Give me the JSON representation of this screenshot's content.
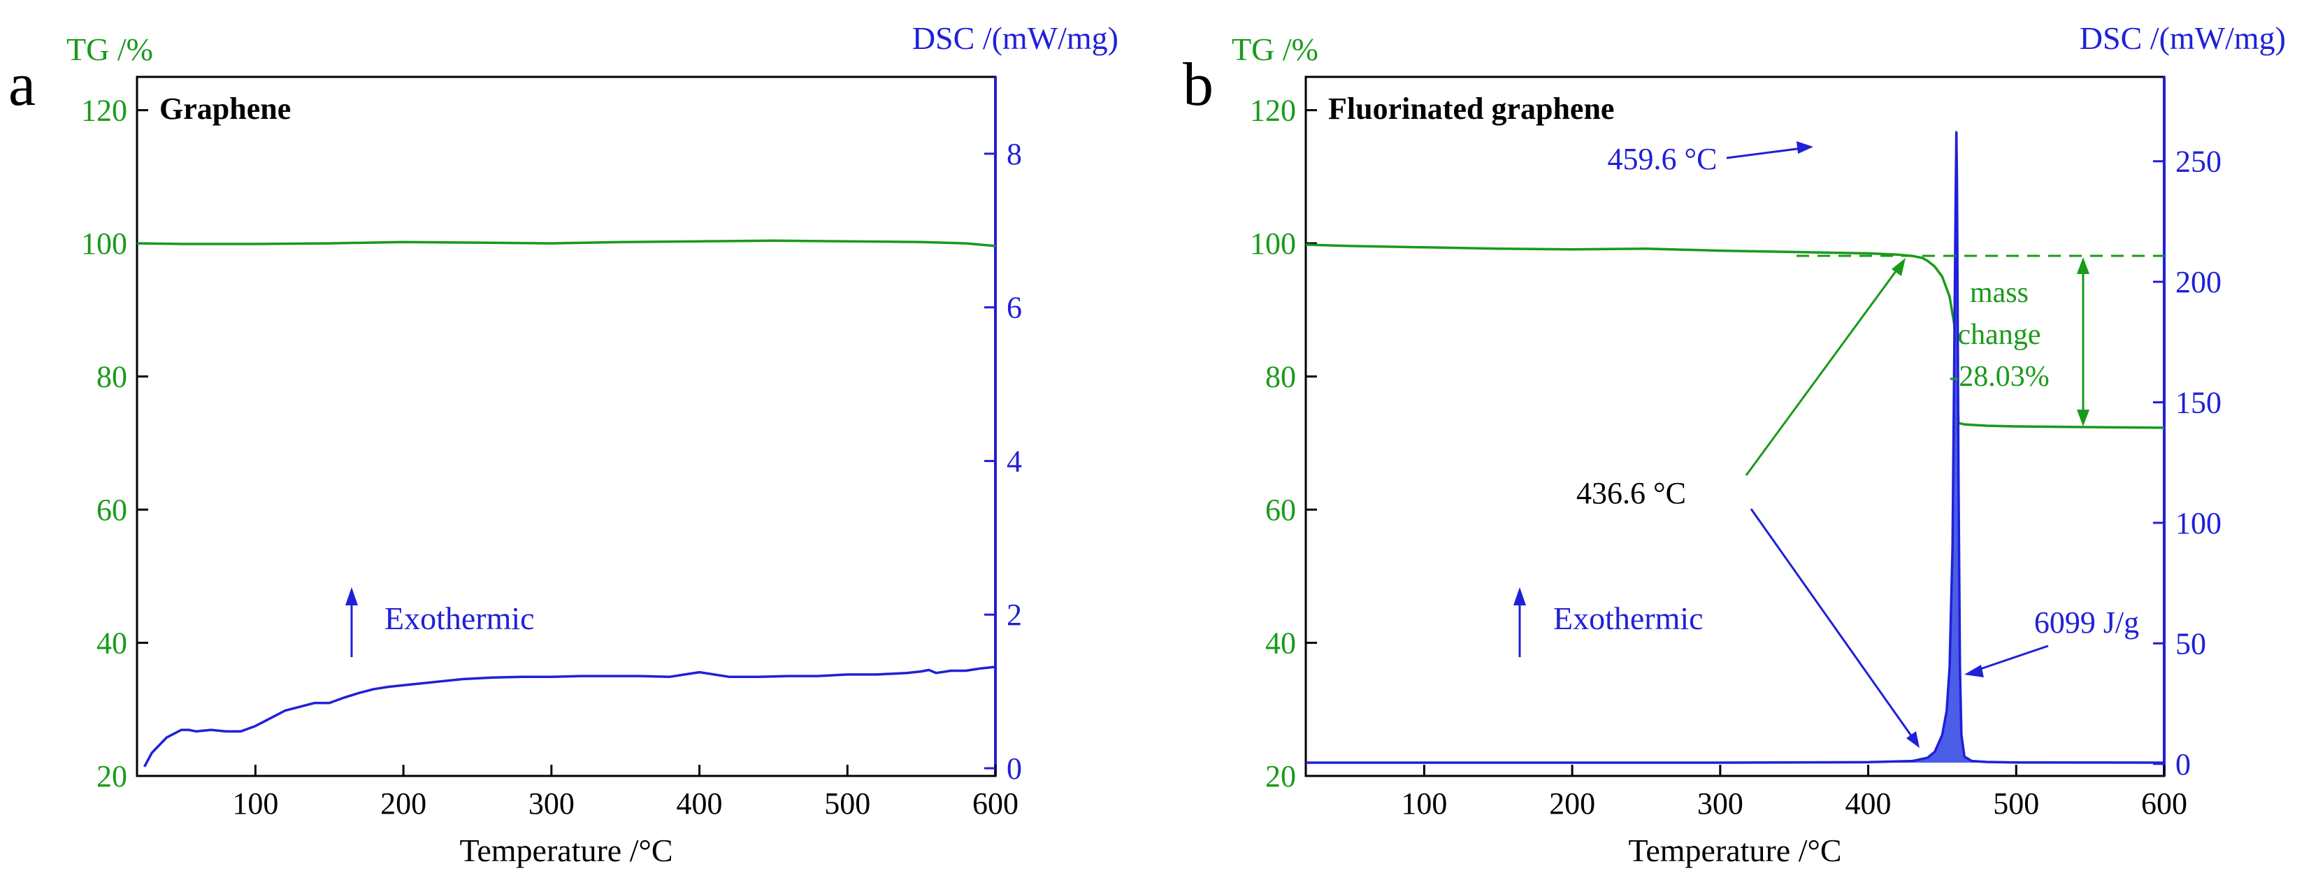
{
  "colors": {
    "tg": "#1a9a1a",
    "dsc": "#2020d8",
    "axis": "#000000",
    "fill": "#4a5ee8"
  },
  "chart_data": [
    {
      "panel_letter": "a",
      "type": "line",
      "title": "Graphene",
      "xlabel": "Temperature /°C",
      "xlim": [
        20,
        600
      ],
      "x_ticks": [
        100,
        200,
        300,
        400,
        500,
        600
      ],
      "y_left": {
        "label": "TG /%",
        "lim": [
          20,
          125
        ],
        "ticks": [
          20,
          40,
          60,
          80,
          100,
          120
        ]
      },
      "y_right": {
        "label": "DSC /(mW/mg)",
        "lim": [
          -0.1,
          9.0
        ],
        "ticks": [
          0,
          2,
          4,
          6,
          8
        ]
      },
      "series": [
        {
          "name": "TG",
          "axis": "left",
          "fill": false,
          "x": [
            20,
            50,
            100,
            150,
            200,
            250,
            300,
            350,
            400,
            450,
            500,
            550,
            580,
            600
          ],
          "y": [
            100.0,
            99.9,
            99.9,
            100.0,
            100.2,
            100.1,
            100.0,
            100.2,
            100.3,
            100.4,
            100.3,
            100.2,
            100.0,
            99.6
          ]
        },
        {
          "name": "DSC",
          "axis": "right",
          "fill": false,
          "x": [
            25,
            30,
            35,
            40,
            45,
            50,
            55,
            60,
            70,
            80,
            90,
            100,
            110,
            120,
            130,
            140,
            150,
            160,
            170,
            180,
            190,
            200,
            220,
            240,
            260,
            280,
            300,
            320,
            340,
            360,
            380,
            390,
            400,
            410,
            420,
            440,
            460,
            480,
            500,
            520,
            540,
            550,
            555,
            560,
            570,
            580,
            590,
            600
          ],
          "y": [
            0.02,
            0.2,
            0.3,
            0.4,
            0.45,
            0.5,
            0.5,
            0.48,
            0.5,
            0.48,
            0.48,
            0.55,
            0.65,
            0.75,
            0.8,
            0.85,
            0.85,
            0.92,
            0.98,
            1.03,
            1.06,
            1.08,
            1.12,
            1.16,
            1.18,
            1.19,
            1.19,
            1.2,
            1.2,
            1.2,
            1.19,
            1.22,
            1.25,
            1.22,
            1.19,
            1.19,
            1.2,
            1.2,
            1.22,
            1.22,
            1.24,
            1.26,
            1.28,
            1.24,
            1.27,
            1.27,
            1.3,
            1.32
          ]
        }
      ],
      "annotations": [
        {
          "text": "Exothermic",
          "kind": "arrow-up-label",
          "x": 162,
          "y_left": 38
        }
      ]
    },
    {
      "panel_letter": "b",
      "type": "line",
      "title": "Fluorinated graphene",
      "xlabel": "Temperature /°C",
      "xlim": [
        20,
        600
      ],
      "x_ticks": [
        100,
        200,
        300,
        400,
        500,
        600
      ],
      "y_left": {
        "label": "TG /%",
        "lim": [
          20,
          125
        ],
        "ticks": [
          20,
          40,
          60,
          80,
          100,
          120
        ]
      },
      "y_right": {
        "label": "DSC /(mW/mg)",
        "lim": [
          -5,
          285
        ],
        "ticks": [
          0,
          50,
          100,
          150,
          200,
          250
        ]
      },
      "series": [
        {
          "name": "TG",
          "axis": "left",
          "fill": false,
          "x": [
            20,
            50,
            100,
            150,
            200,
            250,
            300,
            350,
            400,
            420,
            430,
            436.6,
            440,
            445,
            450,
            455,
            458,
            460,
            461,
            465,
            480,
            500,
            550,
            600
          ],
          "y": [
            99.8,
            99.6,
            99.4,
            99.2,
            99.1,
            99.2,
            98.9,
            98.7,
            98.5,
            98.3,
            98.1,
            97.8,
            97.4,
            96.5,
            95.0,
            92.0,
            88.0,
            82.0,
            73.0,
            72.8,
            72.6,
            72.5,
            72.4,
            72.3
          ]
        },
        {
          "name": "DSC",
          "axis": "right",
          "fill": true,
          "x": [
            20,
            100,
            200,
            300,
            400,
            430,
            440,
            445,
            450,
            453,
            455,
            457,
            458,
            459,
            459.6,
            460,
            461,
            462,
            463,
            465,
            470,
            480,
            500,
            600
          ],
          "y": [
            0.5,
            0.5,
            0.5,
            0.5,
            0.7,
            1.2,
            2.5,
            5,
            12,
            22,
            40,
            90,
            160,
            230,
            262,
            240,
            120,
            40,
            12,
            3,
            1.2,
            0.8,
            0.6,
            0.5
          ]
        }
      ],
      "annotations": [
        {
          "text": "459.6 °C",
          "kind": "peak-label",
          "x": 459.6
        },
        {
          "text": "436.6 °C",
          "kind": "onset-label",
          "x": 436.6
        },
        {
          "text": "6099 J/g",
          "kind": "enthalpy-label",
          "value": 6099
        },
        {
          "text": "mass",
          "kind": "mass-change-line1"
        },
        {
          "text": "change",
          "kind": "mass-change-line2"
        },
        {
          "text": "-28.03%",
          "kind": "mass-change-line3",
          "value": -28.03
        },
        {
          "text": "Exothermic",
          "kind": "arrow-up-label",
          "x": 162,
          "y_left": 38
        }
      ]
    }
  ]
}
